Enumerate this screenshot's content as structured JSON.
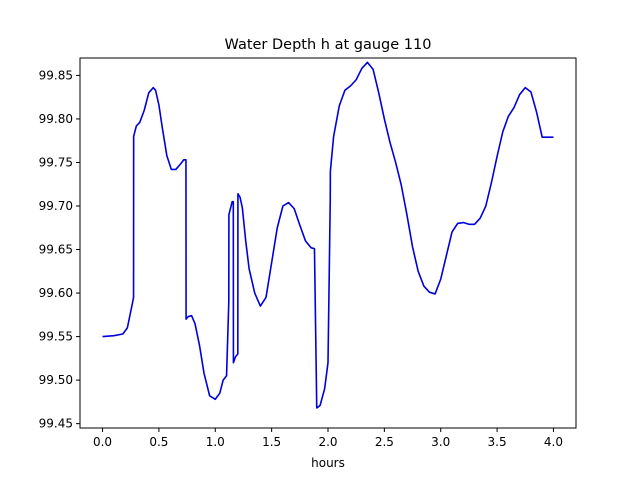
{
  "chart_data": {
    "type": "line",
    "title": "Water Depth h at gauge 110",
    "xlabel": "hours",
    "ylabel": "",
    "xlim": [
      -0.2,
      4.2
    ],
    "ylim": [
      99.445,
      99.87
    ],
    "grid": false,
    "x_ticks": [
      0.0,
      0.5,
      1.0,
      1.5,
      2.0,
      2.5,
      3.0,
      3.5,
      4.0
    ],
    "x_tick_labels": [
      "0.0",
      "0.5",
      "1.0",
      "1.5",
      "2.0",
      "2.5",
      "3.0",
      "3.5",
      "4.0"
    ],
    "y_ticks": [
      99.45,
      99.5,
      99.55,
      99.6,
      99.65,
      99.7,
      99.75,
      99.8,
      99.85
    ],
    "y_tick_labels": [
      "99.45",
      "99.50",
      "99.55",
      "99.60",
      "99.65",
      "99.70",
      "99.75",
      "99.80",
      "99.85"
    ],
    "series": [
      {
        "color": "#0000dd",
        "x": [
          0.0,
          0.1,
          0.18,
          0.22,
          0.26,
          0.275,
          0.276,
          0.3,
          0.33,
          0.37,
          0.41,
          0.45,
          0.47,
          0.5,
          0.53,
          0.57,
          0.61,
          0.65,
          0.69,
          0.72,
          0.74,
          0.741,
          0.76,
          0.79,
          0.82,
          0.86,
          0.9,
          0.95,
          1.0,
          1.04,
          1.07,
          1.1,
          1.12,
          1.121,
          1.15,
          1.16,
          1.161,
          1.18,
          1.2,
          1.201,
          1.22,
          1.24,
          1.27,
          1.3,
          1.35,
          1.4,
          1.45,
          1.5,
          1.55,
          1.6,
          1.65,
          1.7,
          1.75,
          1.8,
          1.85,
          1.88,
          1.9,
          1.901,
          1.93,
          1.97,
          2.0,
          2.02,
          2.021,
          2.05,
          2.1,
          2.15,
          2.2,
          2.25,
          2.3,
          2.35,
          2.4,
          2.45,
          2.5,
          2.55,
          2.6,
          2.65,
          2.7,
          2.75,
          2.8,
          2.85,
          2.9,
          2.95,
          3.0,
          3.05,
          3.1,
          3.15,
          3.2,
          3.25,
          3.3,
          3.35,
          3.4,
          3.45,
          3.5,
          3.55,
          3.6,
          3.65,
          3.7,
          3.75,
          3.8,
          3.85,
          3.9,
          3.95,
          4.0
        ],
        "y": [
          99.55,
          99.551,
          99.553,
          99.56,
          99.585,
          99.595,
          99.78,
          99.792,
          99.796,
          99.81,
          99.83,
          99.836,
          99.833,
          99.816,
          99.79,
          99.758,
          99.742,
          99.742,
          99.748,
          99.753,
          99.753,
          99.57,
          99.573,
          99.574,
          99.565,
          99.54,
          99.508,
          99.482,
          99.478,
          99.485,
          99.5,
          99.505,
          99.59,
          99.69,
          99.705,
          99.705,
          99.52,
          99.527,
          99.53,
          99.714,
          99.71,
          99.698,
          99.66,
          99.628,
          99.6,
          99.585,
          99.595,
          99.635,
          99.675,
          99.7,
          99.704,
          99.697,
          99.678,
          99.66,
          99.652,
          99.651,
          99.47,
          99.468,
          99.471,
          99.49,
          99.52,
          99.707,
          99.74,
          99.78,
          99.815,
          99.833,
          99.838,
          99.845,
          99.858,
          99.865,
          99.857,
          99.83,
          99.8,
          99.773,
          99.75,
          99.724,
          99.69,
          99.653,
          99.625,
          99.608,
          99.601,
          99.599,
          99.616,
          99.643,
          99.67,
          99.68,
          99.681,
          99.679,
          99.679,
          99.686,
          99.7,
          99.727,
          99.757,
          99.785,
          99.803,
          99.813,
          99.828,
          99.836,
          99.831,
          99.808,
          99.779,
          99.779,
          99.779
        ]
      }
    ]
  }
}
